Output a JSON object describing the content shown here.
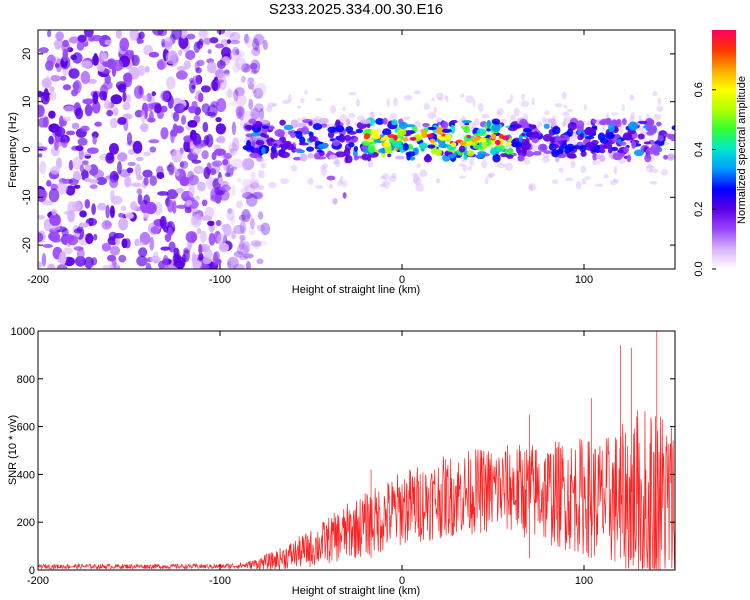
{
  "figure_title": "S233.2025.334.00.30.E16",
  "chart_data": [
    {
      "type": "heatmap",
      "title": "S233.2025.334.00.30.E16",
      "xlabel": "Height of straight line (km)",
      "ylabel": "Frequency (Hz)",
      "xlim": [
        -200,
        150
      ],
      "ylim": [
        -25,
        25
      ],
      "xticks": [
        -200,
        -100,
        0,
        100
      ],
      "yticks": [
        -20,
        -10,
        0,
        10,
        20
      ],
      "colorbar": {
        "label": "Normalized spectral amplitude",
        "range": [
          0.0,
          0.8
        ],
        "ticks": [
          0.0,
          0.2,
          0.4,
          0.6
        ],
        "tick_labels": [
          "0.0",
          "0.2",
          "0.4",
          "0.6"
        ],
        "colormap": [
          "#ffffff",
          "#d9b3ff",
          "#9a45ff",
          "#5a00e6",
          "#0000ff",
          "#0099ff",
          "#00e6cc",
          "#33ff33",
          "#b3ff00",
          "#ffff00",
          "#ffa500",
          "#ff3300",
          "#ff0066"
        ]
      },
      "regions": {
        "noise_region_x": [
          -200,
          -85
        ],
        "signal_track_x": [
          -85,
          150
        ],
        "signal_center_freq_hz": 2,
        "signal_band_halfwidth_hz": 4,
        "peak_amplitude_near_x": [
          -20,
          60
        ]
      }
    },
    {
      "type": "line",
      "xlabel": "Height of straight line (km)",
      "ylabel": "SNR (10 * v/v)",
      "xlim": [
        -200,
        150
      ],
      "ylim": [
        0,
        1000
      ],
      "xticks": [
        -200,
        -100,
        0,
        100
      ],
      "yticks": [
        0,
        200,
        400,
        600,
        800,
        1000
      ],
      "color": "#ff2020",
      "series_envelope": {
        "x": [
          -200,
          -150,
          -100,
          -85,
          -70,
          -50,
          -30,
          -10,
          0,
          20,
          40,
          60,
          80,
          100,
          110,
          120,
          130,
          140,
          150
        ],
        "y_mid": [
          15,
          15,
          15,
          20,
          40,
          90,
          160,
          220,
          260,
          300,
          330,
          340,
          320,
          310,
          290,
          300,
          310,
          290,
          280
        ],
        "y_spread": [
          10,
          10,
          10,
          15,
          40,
          80,
          120,
          150,
          160,
          170,
          180,
          190,
          220,
          250,
          260,
          300,
          380,
          420,
          350
        ]
      },
      "notable_peaks": [
        {
          "x": -17,
          "y": 420
        },
        {
          "x": 70,
          "y": 650
        },
        {
          "x": 104,
          "y": 720
        },
        {
          "x": 120,
          "y": 940
        },
        {
          "x": 126,
          "y": 930
        },
        {
          "x": 140,
          "y": 1000
        }
      ]
    }
  ]
}
